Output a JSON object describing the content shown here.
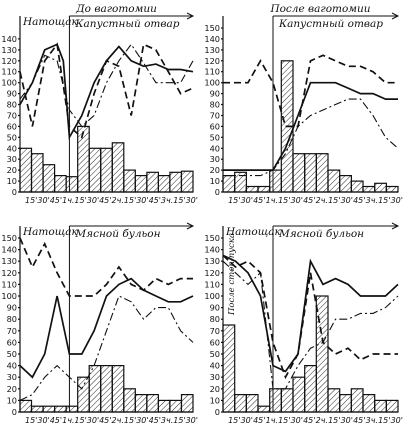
{
  "chart_data": [
    {
      "type": "line",
      "title": "До ваготомии",
      "label_fasting": "Натощак",
      "label_food": "Капустный отвар",
      "y_ticks": [
        "140",
        "130",
        "120",
        "110",
        "100",
        "90",
        "80",
        "70",
        "60",
        "50",
        "40",
        "30",
        "20",
        "10",
        "0"
      ],
      "x_ticks": [
        "15'",
        "30'",
        "45'",
        "1ч.",
        "15'",
        "30'",
        "45'",
        "2ч.",
        "15'",
        "30'",
        "45'",
        "3ч.",
        "15'",
        "30'"
      ],
      "ylim": [
        0,
        150
      ],
      "xlim": [
        0,
        14
      ],
      "food_marker_x": 4,
      "histogram": [
        40,
        35,
        25,
        15,
        14,
        60,
        40,
        40,
        45,
        20,
        15,
        18,
        15,
        18,
        19
      ],
      "series": [
        {
          "style": "solid",
          "x": [
            0,
            1,
            2,
            3,
            3.5,
            4,
            5,
            6,
            7,
            8,
            9,
            10,
            11,
            12,
            13,
            14
          ],
          "y": [
            80,
            100,
            130,
            135,
            120,
            50,
            70,
            100,
            120,
            133,
            120,
            115,
            117,
            112,
            112,
            110
          ]
        },
        {
          "style": "dash",
          "x": [
            0,
            1,
            2,
            3,
            4,
            5,
            6,
            7,
            8,
            9,
            10,
            11,
            12,
            13,
            14
          ],
          "y": [
            110,
            60,
            120,
            135,
            60,
            50,
            90,
            120,
            115,
            70,
            135,
            130,
            110,
            90,
            95
          ]
        },
        {
          "style": "dashdot",
          "x": [
            0,
            1,
            2,
            3,
            4,
            5,
            6,
            7,
            8,
            9,
            10,
            11,
            12,
            13,
            14
          ],
          "y": [
            85,
            100,
            125,
            120,
            75,
            60,
            70,
            100,
            120,
            135,
            118,
            100,
            100,
            100,
            120
          ]
        }
      ]
    },
    {
      "type": "line",
      "title": "После ваготомии",
      "label_fasting": "",
      "label_food": "Капустный отвар",
      "y_ticks": [
        "150",
        "140",
        "130",
        "120",
        "110",
        "100",
        "90",
        "80",
        "70",
        "60",
        "50",
        "40",
        "30",
        "20",
        "10",
        "0"
      ],
      "x_ticks": [
        "15'",
        "30'",
        "45'",
        "1ч.",
        "15'",
        "30'",
        "45'",
        "2ч.",
        "15'",
        "30'",
        "45'",
        "3ч.",
        "15'",
        "30'"
      ],
      "ylim": [
        0,
        150
      ],
      "xlim": [
        0,
        14
      ],
      "food_marker_x": 4,
      "histogram": [
        15,
        18,
        5,
        5,
        20,
        120,
        35,
        35,
        35,
        20,
        15,
        10,
        5,
        8,
        5
      ],
      "series": [
        {
          "style": "solid",
          "x": [
            0,
            1,
            2,
            3,
            4,
            5,
            6,
            7,
            8,
            9,
            10,
            11,
            12,
            13,
            14
          ],
          "y": [
            20,
            20,
            20,
            20,
            20,
            40,
            70,
            100,
            100,
            100,
            95,
            90,
            90,
            85,
            85
          ]
        },
        {
          "style": "dash",
          "x": [
            0,
            1,
            2,
            3,
            4,
            5,
            6,
            7,
            8,
            9,
            10,
            11,
            12,
            13,
            14
          ],
          "y": [
            100,
            100,
            100,
            120,
            100,
            60,
            60,
            120,
            125,
            120,
            115,
            115,
            110,
            100,
            100
          ]
        },
        {
          "style": "dashdot",
          "x": [
            0,
            1,
            2,
            3,
            4,
            5,
            6,
            7,
            8,
            9,
            10,
            11,
            12,
            13,
            14
          ],
          "y": [
            15,
            15,
            15,
            15,
            20,
            35,
            60,
            70,
            75,
            80,
            85,
            85,
            70,
            50,
            40
          ]
        }
      ]
    },
    {
      "type": "line",
      "title": "",
      "label_fasting": "Натощак",
      "label_food": "Мясной бульон",
      "y_ticks": [
        "150",
        "140",
        "130",
        "120",
        "110",
        "100",
        "90",
        "80",
        "70",
        "60",
        "50",
        "40",
        "30",
        "20",
        "10",
        "0"
      ],
      "x_ticks": [
        "15'",
        "30'",
        "45'",
        "1ч.",
        "15'",
        "30'",
        "45'",
        "2ч.",
        "15'",
        "30'",
        "45'",
        "3ч.",
        "15'",
        "30'"
      ],
      "ylim": [
        0,
        150
      ],
      "xlim": [
        0,
        14
      ],
      "food_marker_x": 4,
      "histogram": [
        10,
        5,
        5,
        5,
        5,
        30,
        40,
        40,
        40,
        20,
        15,
        15,
        10,
        10,
        15
      ],
      "series": [
        {
          "style": "solid",
          "x": [
            0,
            1,
            2,
            3,
            4,
            5,
            6,
            7,
            8,
            9,
            10,
            11,
            12,
            13,
            14
          ],
          "y": [
            40,
            30,
            50,
            100,
            50,
            50,
            70,
            100,
            110,
            115,
            105,
            100,
            95,
            95,
            100
          ]
        },
        {
          "style": "dash",
          "x": [
            0,
            1,
            2,
            3,
            4,
            5,
            6,
            7,
            8,
            9,
            10,
            11,
            12,
            13,
            14
          ],
          "y": [
            150,
            125,
            145,
            120,
            100,
            100,
            100,
            110,
            125,
            110,
            105,
            115,
            110,
            115,
            115
          ]
        },
        {
          "style": "dashdot",
          "x": [
            0,
            1,
            2,
            3,
            4,
            5,
            6,
            7,
            8,
            9,
            10,
            11,
            12,
            13,
            14
          ],
          "y": [
            10,
            15,
            30,
            40,
            30,
            20,
            40,
            70,
            100,
            95,
            80,
            90,
            90,
            70,
            60
          ]
        }
      ]
    },
    {
      "type": "line",
      "title": "",
      "label_fasting": "Натощак",
      "label_food": "Мясной бульон",
      "label_vertical": "После стоп-пуска",
      "y_ticks": [
        "150",
        "140",
        "130",
        "120",
        "110",
        "100",
        "90",
        "80",
        "70",
        "60",
        "50",
        "40",
        "30",
        "20",
        "10",
        "0"
      ],
      "x_ticks": [
        "15'",
        "30'",
        "45'",
        "1ч.",
        "15'",
        "30'",
        "45'",
        "2ч.",
        "15'",
        "30'",
        "45'",
        "3ч.",
        "15'",
        "30'"
      ],
      "ylim": [
        0,
        150
      ],
      "xlim": [
        0,
        14
      ],
      "food_marker_x": 4,
      "histogram": [
        75,
        15,
        15,
        5,
        20,
        20,
        30,
        40,
        100,
        20,
        15,
        20,
        15,
        10,
        10
      ],
      "series": [
        {
          "style": "solid",
          "x": [
            0,
            1,
            2,
            3,
            4,
            5,
            6,
            7,
            8,
            9,
            10,
            11,
            12,
            13,
            14
          ],
          "y": [
            135,
            130,
            120,
            100,
            40,
            35,
            50,
            130,
            110,
            115,
            110,
            100,
            100,
            100,
            110
          ]
        },
        {
          "style": "dash",
          "x": [
            0,
            1,
            2,
            3,
            4,
            5,
            6,
            7,
            8,
            9,
            10,
            11,
            12,
            13,
            14
          ],
          "y": [
            135,
            125,
            130,
            120,
            60,
            30,
            50,
            120,
            60,
            50,
            55,
            45,
            50,
            50,
            50
          ]
        },
        {
          "style": "dashdot",
          "x": [
            0,
            1,
            2,
            3,
            4,
            5,
            6,
            7,
            8,
            9,
            10,
            11,
            12,
            13,
            14
          ],
          "y": [
            130,
            120,
            110,
            120,
            20,
            20,
            40,
            55,
            60,
            80,
            80,
            85,
            85,
            90,
            100
          ]
        }
      ]
    }
  ]
}
